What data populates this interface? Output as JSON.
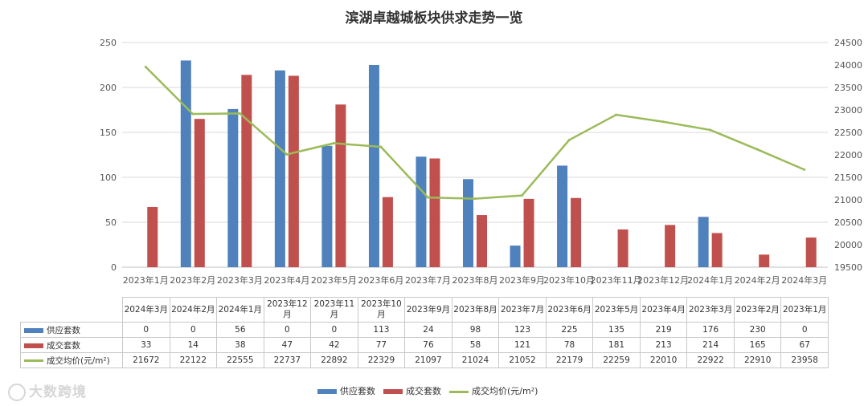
{
  "chart_data": {
    "type": "bar",
    "title": "滨湖卓越城板块供求走势一览",
    "categories": [
      "2023年1月",
      "2023年2月",
      "2023年3月",
      "2023年4月",
      "2023年5月",
      "2023年6月",
      "2023年7月",
      "2023年8月",
      "2023年9月",
      "2023年10月",
      "2023年11月",
      "2023年12月",
      "2024年1月",
      "2024年2月",
      "2024年3月"
    ],
    "series": [
      {
        "name": "供应套数",
        "type": "bar",
        "color": "#4f81bd",
        "values": [
          0,
          230,
          176,
          219,
          135,
          225,
          123,
          98,
          24,
          113,
          0,
          0,
          56,
          0,
          0
        ]
      },
      {
        "name": "成交套数",
        "type": "bar",
        "color": "#c0504d",
        "values": [
          67,
          165,
          214,
          213,
          181,
          78,
          121,
          58,
          76,
          77,
          42,
          47,
          38,
          14,
          33
        ]
      },
      {
        "name": "成交均价(元/m²)",
        "type": "line",
        "axis": "right",
        "color": "#9bbb59",
        "values": [
          23958,
          22910,
          22922,
          22010,
          22259,
          22179,
          21052,
          21024,
          21097,
          22329,
          22892,
          22737,
          22555,
          22122,
          21672
        ]
      }
    ],
    "left_axis": {
      "min": 0,
      "max": 250,
      "ticks": [
        "0",
        "50",
        "100",
        "150",
        "200",
        "250"
      ]
    },
    "right_axis": {
      "min": 19500,
      "max": 24500,
      "ticks": [
        "19500",
        "20000",
        "20500",
        "21000",
        "21500",
        "22000",
        "22500",
        "23000",
        "23500",
        "24000",
        "24500"
      ]
    },
    "legend_position": "bottom"
  },
  "table": {
    "headers": [
      "2024年3月",
      "2024年2月",
      "2024年1月",
      "2023年12月",
      "2023年11月",
      "2023年10月",
      "2023年9月",
      "2023年8月",
      "2023年7月",
      "2023年6月",
      "2023年5月",
      "2023年4月",
      "2023年3月",
      "2023年2月",
      "2023年1月"
    ],
    "rows": [
      {
        "label": "供应套数",
        "color": "#4f81bd",
        "kind": "bar",
        "values": [
          "0",
          "0",
          "56",
          "0",
          "0",
          "113",
          "24",
          "98",
          "123",
          "225",
          "135",
          "219",
          "176",
          "230",
          "0"
        ]
      },
      {
        "label": "成交套数",
        "color": "#c0504d",
        "kind": "bar",
        "values": [
          "33",
          "14",
          "38",
          "47",
          "42",
          "77",
          "76",
          "58",
          "121",
          "78",
          "181",
          "213",
          "214",
          "165",
          "67"
        ]
      },
      {
        "label": "成交均价(元/m²)",
        "color": "#9bbb59",
        "kind": "line",
        "values": [
          "21672",
          "22122",
          "22555",
          "22737",
          "22892",
          "22329",
          "21097",
          "21024",
          "21052",
          "22179",
          "22259",
          "22010",
          "22922",
          "22910",
          "23958"
        ]
      }
    ]
  },
  "legend": [
    {
      "label": "供应套数",
      "color": "#4f81bd",
      "kind": "bar"
    },
    {
      "label": "成交套数",
      "color": "#c0504d",
      "kind": "bar"
    },
    {
      "label": "成交均价(元/m²)",
      "color": "#9bbb59",
      "kind": "line"
    }
  ],
  "watermark": "大数跨境"
}
